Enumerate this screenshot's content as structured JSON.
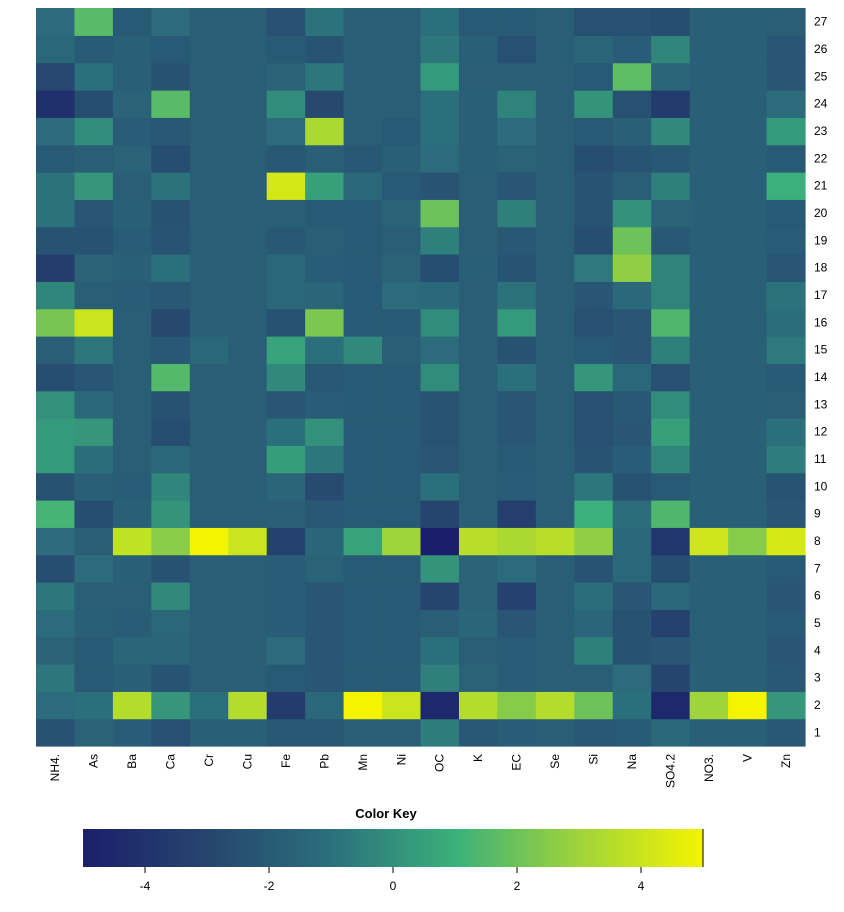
{
  "chart_data": {
    "type": "heatmap",
    "columns": [
      "NH4.",
      "As",
      "Ba",
      "Ca",
      "Cr",
      "Cu",
      "Fe",
      "Pb",
      "Mn",
      "Ni",
      "OC",
      "K",
      "EC",
      "Se",
      "Si",
      "Na",
      "SO4.2",
      "NO3.",
      "V",
      "Zn"
    ],
    "rows": [
      "1",
      "2",
      "3",
      "4",
      "5",
      "6",
      "7",
      "8",
      "9",
      "10",
      "11",
      "12",
      "13",
      "14",
      "15",
      "16",
      "17",
      "18",
      "19",
      "20",
      "21",
      "22",
      "23",
      "24",
      "25",
      "26",
      "27"
    ],
    "values": [
      [
        -2.4,
        -1.6,
        -1.9,
        -2.5,
        -1.7,
        -1.7,
        -2.1,
        -2.1,
        -1.8,
        -1.8,
        -0.6,
        -2.1,
        -1.9,
        -1.8,
        -2.1,
        -2.0,
        -1.3,
        -1.7,
        -1.7,
        -2.1
      ],
      [
        -1.2,
        -1.0,
        3.5,
        0.2,
        -1.0,
        3.5,
        -3.5,
        -1.4,
        5.0,
        4.0,
        -4.5,
        3.5,
        2.5,
        3.5,
        2.0,
        -1.0,
        -4.5,
        3.0,
        5.0,
        0.2
      ],
      [
        -0.8,
        -2.0,
        -1.7,
        -2.3,
        -1.8,
        -1.8,
        -2.0,
        -2.2,
        -2.0,
        -2.0,
        -0.5,
        -1.6,
        -1.9,
        -1.8,
        -1.8,
        -1.2,
        -3.0,
        -1.7,
        -1.7,
        -2.1
      ],
      [
        -1.6,
        -2.0,
        -1.5,
        -1.5,
        -1.8,
        -1.8,
        -1.2,
        -2.2,
        -2.0,
        -2.0,
        -1.0,
        -1.8,
        -1.9,
        -1.8,
        -0.5,
        -2.4,
        -2.2,
        -1.7,
        -1.7,
        -2.2
      ],
      [
        -1.2,
        -1.7,
        -1.9,
        -1.4,
        -1.8,
        -1.8,
        -1.9,
        -2.2,
        -2.0,
        -2.0,
        -1.8,
        -1.5,
        -2.2,
        -1.8,
        -1.5,
        -2.4,
        -3.2,
        -1.7,
        -1.7,
        -2.0
      ],
      [
        -0.8,
        -1.8,
        -1.8,
        -0.2,
        -1.8,
        -1.8,
        -1.9,
        -2.2,
        -2.0,
        -2.0,
        -3.0,
        -1.6,
        -3.2,
        -1.8,
        -1.1,
        -2.2,
        -1.4,
        -1.7,
        -1.7,
        -2.2
      ],
      [
        -2.6,
        -1.2,
        -1.7,
        -2.4,
        -1.8,
        -1.8,
        -1.9,
        -1.6,
        -2.0,
        -2.0,
        0.1,
        -1.6,
        -1.2,
        -1.8,
        -2.3,
        -1.4,
        -2.6,
        -1.7,
        -1.7,
        -2.0
      ],
      [
        -1.2,
        -1.8,
        3.8,
        2.6,
        5.0,
        4.0,
        -3.2,
        -1.5,
        0.6,
        3.0,
        -5.0,
        3.6,
        3.3,
        3.6,
        2.7,
        -1.4,
        -3.8,
        4.1,
        2.5,
        4.3
      ],
      [
        1.2,
        -2.6,
        -1.7,
        0.1,
        -1.8,
        -1.8,
        -1.8,
        -2.1,
        -2.0,
        -2.0,
        -3.0,
        -1.8,
        -3.3,
        -1.8,
        1.0,
        -1.1,
        1.4,
        -1.7,
        -1.7,
        -2.2
      ],
      [
        -2.4,
        -1.7,
        -1.9,
        -0.3,
        -1.8,
        -1.8,
        -1.5,
        -2.7,
        -2.0,
        -2.0,
        -1.0,
        -1.8,
        -1.9,
        -1.8,
        -0.8,
        -2.4,
        -2.0,
        -1.7,
        -1.7,
        -2.3
      ],
      [
        0.3,
        -1.1,
        -1.8,
        -1.4,
        -1.8,
        -1.8,
        0.4,
        -0.8,
        -2.0,
        -2.0,
        -2.2,
        -1.8,
        -2.0,
        -1.8,
        -2.3,
        -1.9,
        -0.3,
        -1.7,
        -1.7,
        -0.6
      ],
      [
        0.3,
        0.2,
        -1.8,
        -2.6,
        -1.8,
        -1.8,
        -1.0,
        0.0,
        -2.0,
        -2.0,
        -2.3,
        -1.8,
        -2.2,
        -1.8,
        -2.5,
        -2.2,
        0.5,
        -1.7,
        -1.7,
        -1.0
      ],
      [
        0.0,
        -1.4,
        -1.8,
        -2.4,
        -1.8,
        -1.8,
        -2.2,
        -1.9,
        -2.0,
        -2.0,
        -2.3,
        -1.8,
        -2.2,
        -1.8,
        -2.5,
        -2.1,
        -0.1,
        -1.7,
        -1.7,
        -1.8
      ],
      [
        -2.6,
        -2.2,
        -1.8,
        1.5,
        -1.8,
        -1.8,
        -0.2,
        -2.1,
        -2.0,
        -2.0,
        -0.1,
        -1.8,
        -1.0,
        -1.8,
        0.2,
        -1.4,
        -2.5,
        -1.7,
        -1.7,
        -2.0
      ],
      [
        -1.8,
        -0.8,
        -1.8,
        -2.1,
        -1.4,
        -1.8,
        0.6,
        -1.0,
        -0.2,
        -1.8,
        -1.2,
        -1.8,
        -2.4,
        -1.8,
        -2.0,
        -2.2,
        -0.5,
        -1.7,
        -1.7,
        -0.7
      ],
      [
        2.2,
        4.0,
        -1.8,
        -2.8,
        -1.8,
        -1.8,
        -2.4,
        2.3,
        -2.0,
        -2.0,
        -0.1,
        -1.8,
        0.3,
        -1.8,
        -2.5,
        -2.2,
        1.4,
        -1.7,
        -1.7,
        -1.1
      ],
      [
        -0.3,
        -1.8,
        -1.9,
        -2.1,
        -1.8,
        -1.8,
        -1.4,
        -1.5,
        -2.0,
        -1.2,
        -1.3,
        -1.8,
        -0.9,
        -1.8,
        -2.2,
        -1.3,
        -0.4,
        -1.7,
        -1.7,
        -0.9
      ],
      [
        -3.4,
        -1.6,
        -1.7,
        -1.0,
        -1.8,
        -1.8,
        -1.4,
        -1.9,
        -2.0,
        -1.6,
        -2.6,
        -1.7,
        -2.3,
        -1.8,
        -0.7,
        2.7,
        -0.4,
        -1.7,
        -1.7,
        -2.2
      ],
      [
        -2.4,
        -2.4,
        -1.9,
        -2.3,
        -1.8,
        -1.8,
        -2.1,
        -1.8,
        -2.0,
        -1.8,
        -0.5,
        -1.8,
        -2.1,
        -1.8,
        -2.6,
        2.0,
        -2.1,
        -1.7,
        -1.7,
        -1.9
      ],
      [
        -0.9,
        -2.2,
        -1.7,
        -2.4,
        -1.8,
        -1.8,
        -1.8,
        -2.0,
        -2.0,
        -1.6,
        2.0,
        -1.8,
        -0.5,
        -1.8,
        -2.3,
        0.0,
        -1.6,
        -1.7,
        -1.7,
        -2.0
      ],
      [
        -0.9,
        0.2,
        -1.8,
        -0.9,
        -1.8,
        -1.8,
        4.2,
        0.5,
        -1.4,
        -2.0,
        -2.3,
        -1.8,
        -2.2,
        -1.8,
        -2.3,
        -1.8,
        -0.5,
        -1.7,
        -1.7,
        1.0
      ],
      [
        -2.0,
        -1.8,
        -1.6,
        -2.6,
        -1.8,
        -1.8,
        -2.1,
        -1.8,
        -2.1,
        -1.7,
        -1.2,
        -1.7,
        -1.6,
        -1.8,
        -2.6,
        -2.3,
        -2.1,
        -1.7,
        -1.7,
        -2.0
      ],
      [
        -1.2,
        -0.1,
        -1.9,
        -2.1,
        -1.8,
        -1.8,
        -1.2,
        3.3,
        -1.8,
        -2.0,
        -1.0,
        -1.7,
        -1.2,
        -1.8,
        -2.0,
        -1.7,
        -0.2,
        -1.7,
        -1.7,
        0.3
      ],
      [
        -4.1,
        -2.6,
        -1.6,
        1.6,
        -1.8,
        -1.8,
        -0.1,
        -2.8,
        -1.8,
        -1.8,
        -1.0,
        -1.7,
        -0.4,
        -1.8,
        0.1,
        -2.5,
        -3.6,
        -1.7,
        -1.7,
        -1.2
      ],
      [
        -2.9,
        -1.0,
        -1.7,
        -2.4,
        -1.8,
        -1.8,
        -1.6,
        -0.8,
        -1.8,
        -1.8,
        0.3,
        -1.8,
        -1.8,
        -1.8,
        -2.0,
        1.7,
        -1.5,
        -1.7,
        -1.7,
        -2.2
      ],
      [
        -1.4,
        -2.0,
        -1.7,
        -2.0,
        -1.8,
        -1.8,
        -2.0,
        -2.3,
        -1.8,
        -1.8,
        -0.8,
        -1.7,
        -2.5,
        -1.8,
        -1.5,
        -1.9,
        -0.3,
        -1.7,
        -1.7,
        -2.2
      ],
      [
        -1.2,
        1.6,
        -2.0,
        -1.2,
        -1.8,
        -1.8,
        -2.5,
        -0.9,
        -1.8,
        -1.8,
        -1.0,
        -2.0,
        -2.0,
        -1.8,
        -2.5,
        -2.5,
        -2.6,
        -1.7,
        -1.7,
        -1.8
      ]
    ],
    "color_key": {
      "title": "Color Key",
      "range": [
        -5,
        5
      ],
      "ticks": [
        -4,
        -2,
        0,
        2,
        4
      ],
      "colormap": "viridis",
      "colors": [
        "#1b1f6b",
        "#26456e",
        "#2b6f7c",
        "#3bb07a",
        "#9fd43a",
        "#f4f400"
      ]
    },
    "legend_position": "bottom"
  }
}
